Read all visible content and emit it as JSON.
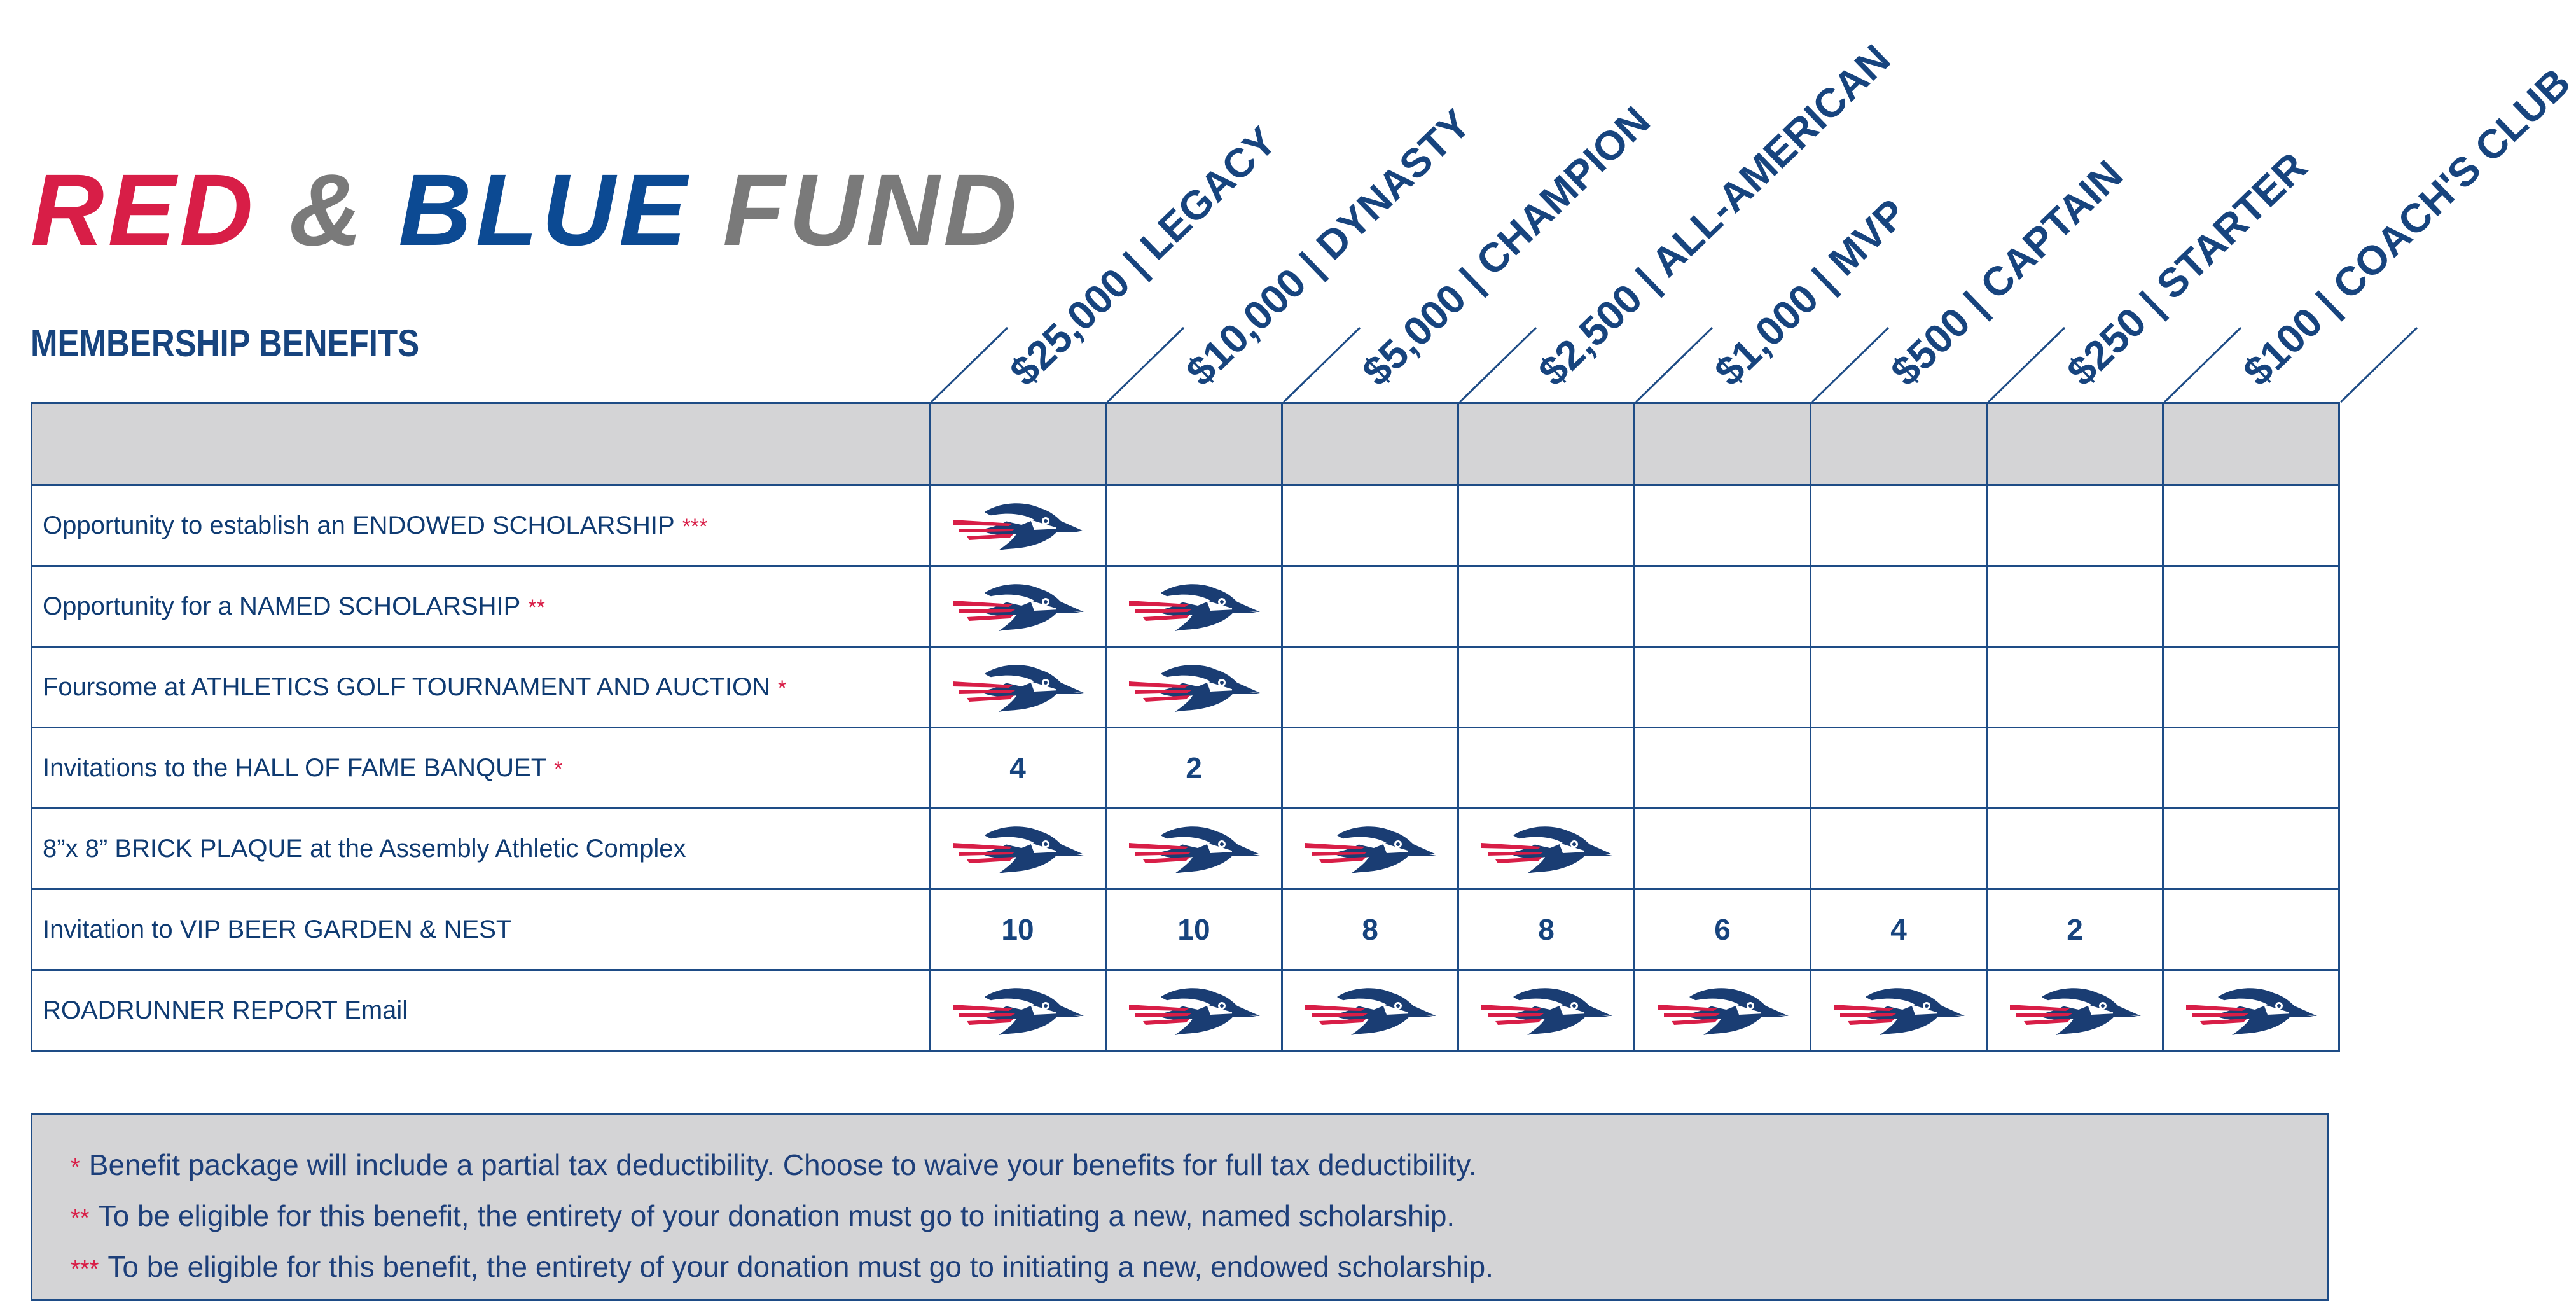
{
  "title": {
    "part1": "RED",
    "amp": "&",
    "part2": "BLUE",
    "part3": "FUND"
  },
  "subtitle": "MEMBERSHIP BENEFITS",
  "levels": [
    {
      "amount": "$25,000",
      "name": "LEGACY"
    },
    {
      "amount": "$10,000",
      "name": "DYNASTY"
    },
    {
      "amount": "$5,000",
      "name": "CHAMPION"
    },
    {
      "amount": "$2,500",
      "name": "ALL-AMERICAN"
    },
    {
      "amount": "$1,000",
      "name": "MVP"
    },
    {
      "amount": "$500",
      "name": "CAPTAIN"
    },
    {
      "amount": "$250",
      "name": "STARTER"
    },
    {
      "amount": "$100",
      "name": "COACH'S CLUB"
    }
  ],
  "separator": "|",
  "rows": [
    {
      "label": "Opportunity to establish an ENDOWED SCHOLARSHIP",
      "mark": "***",
      "cells": [
        "icon",
        "",
        "",
        "",
        "",
        "",
        "",
        ""
      ]
    },
    {
      "label": "Opportunity for a NAMED SCHOLARSHIP",
      "mark": "**",
      "cells": [
        "icon",
        "icon",
        "",
        "",
        "",
        "",
        "",
        ""
      ]
    },
    {
      "label": "Foursome at ATHLETICS GOLF TOURNAMENT AND AUCTION",
      "mark": "*",
      "cells": [
        "icon",
        "icon",
        "",
        "",
        "",
        "",
        "",
        ""
      ]
    },
    {
      "label": "Invitations to the HALL OF FAME BANQUET",
      "mark": "*",
      "cells": [
        "4",
        "2",
        "",
        "",
        "",
        "",
        "",
        ""
      ]
    },
    {
      "label": "8”x 8” BRICK PLAQUE at the Assembly Athletic Complex",
      "mark": "",
      "cells": [
        "icon",
        "icon",
        "icon",
        "icon",
        "",
        "",
        "",
        ""
      ]
    },
    {
      "label": "Invitation to VIP BEER GARDEN & NEST",
      "mark": "",
      "cells": [
        "10",
        "10",
        "8",
        "8",
        "6",
        "4",
        "2",
        ""
      ]
    },
    {
      "label": "ROADRUNNER REPORT Email",
      "mark": "",
      "cells": [
        "icon",
        "icon",
        "icon",
        "icon",
        "icon",
        "icon",
        "icon",
        "icon"
      ]
    }
  ],
  "footnotes": [
    {
      "mark": "*",
      "text": "Benefit package will include a partial tax deductibility. Choose to waive your benefits for full tax deductibility."
    },
    {
      "mark": "**",
      "text": "To be eligible for this benefit, the entirety of your donation must go to initiating a new, named scholarship."
    },
    {
      "mark": "***",
      "text": "To be eligible for this benefit, the entirety of your donation must go to initiating a new, endowed scholarship."
    }
  ],
  "icon": "roadrunner-icon",
  "colors": {
    "red": "#d81e47",
    "blue": "#0c4a93",
    "navy": "#17447e",
    "gray": "#7a7a7a",
    "panel": "#d4d4d6"
  }
}
